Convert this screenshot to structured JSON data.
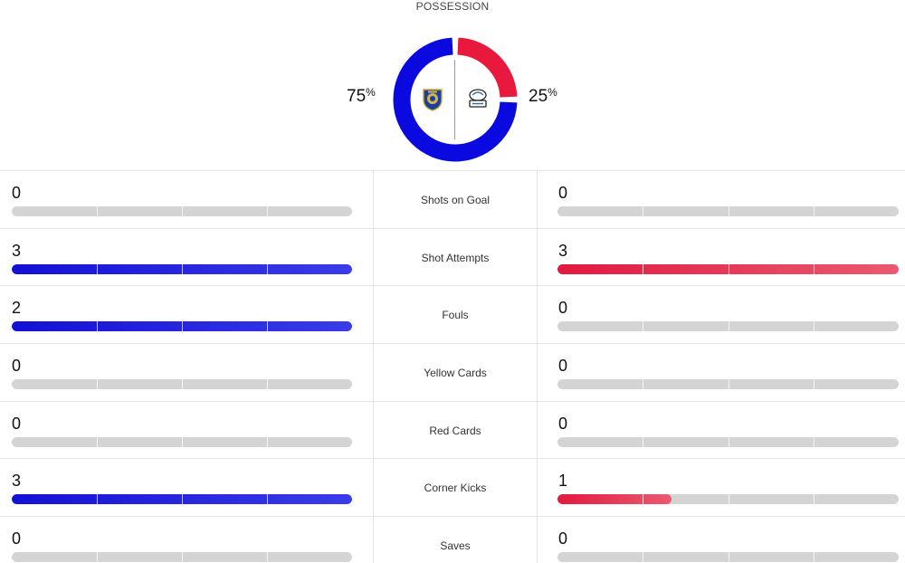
{
  "possession": {
    "title": "POSSESSION",
    "home_pct": "75",
    "away_pct": "25",
    "pct_symbol": "%",
    "home_value": 0.75,
    "away_value": 0.25,
    "home_color": "#0a0ae0",
    "away_color": "#e8193c",
    "home_crest_icon": "leicester-city-crest-icon",
    "away_crest_icon": "preston-north-end-crest-icon"
  },
  "colors": {
    "home": "#1410d4",
    "away": "#e01a40",
    "bar_bg": "#d4d4d4"
  },
  "stats": [
    {
      "label": "Shots on Goal",
      "home": "0",
      "away": "0",
      "home_fill": 0,
      "away_fill": 0
    },
    {
      "label": "Shot Attempts",
      "home": "3",
      "away": "3",
      "home_fill": 1,
      "away_fill": 1
    },
    {
      "label": "Fouls",
      "home": "2",
      "away": "0",
      "home_fill": 1,
      "away_fill": 0
    },
    {
      "label": "Yellow Cards",
      "home": "0",
      "away": "0",
      "home_fill": 0,
      "away_fill": 0
    },
    {
      "label": "Red Cards",
      "home": "0",
      "away": "0",
      "home_fill": 0,
      "away_fill": 0
    },
    {
      "label": "Corner Kicks",
      "home": "3",
      "away": "1",
      "home_fill": 1,
      "away_fill": 0.333
    },
    {
      "label": "Saves",
      "home": "0",
      "away": "0",
      "home_fill": 0,
      "away_fill": 0
    }
  ]
}
